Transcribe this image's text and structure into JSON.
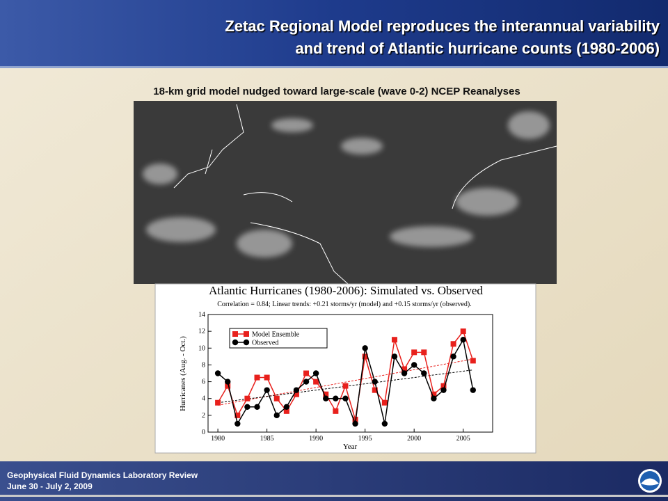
{
  "header": {
    "title_lines": [
      "Zetac Regional Model reproduces the interannual variability",
      "and trend of Atlantic hurricane counts (1980-2006)"
    ]
  },
  "image_caption": "18-km grid model nudged toward large-scale (wave 0-2) NCEP Reanalyses",
  "chart_data": {
    "type": "line",
    "title": "Atlantic Hurricanes (1980-2006): Simulated vs. Observed",
    "subtitle": "Correlation = 0.84; Linear trends: +0.21 storms/yr (model) and +0.15 storms/yr (observed).",
    "x_label": "Year",
    "y_label": "Hurricanes (Aug. - Oct.)",
    "x": [
      1980,
      1981,
      1982,
      1983,
      1984,
      1985,
      1986,
      1987,
      1988,
      1989,
      1990,
      1991,
      1992,
      1993,
      1994,
      1995,
      1996,
      1997,
      1998,
      1999,
      2000,
      2001,
      2002,
      2003,
      2004,
      2005,
      2006
    ],
    "series": [
      {
        "name": "Model Ensemble",
        "color": "#e8201c",
        "marker": "square",
        "values": [
          3.5,
          5.5,
          2,
          4,
          6.5,
          6.5,
          4,
          2.5,
          4.5,
          7,
          6,
          4.5,
          2.5,
          5.5,
          1.5,
          9,
          5,
          3.5,
          11,
          7.5,
          9.5,
          9.5,
          4.5,
          5.5,
          10.5,
          12,
          8.5
        ]
      },
      {
        "name": "Observed",
        "color": "#000000",
        "marker": "circle",
        "values": [
          7,
          6,
          1,
          3,
          3,
          5,
          2,
          3,
          5,
          6,
          7,
          4,
          4,
          4,
          1,
          10,
          6,
          1,
          9,
          7,
          8,
          7,
          4,
          5,
          9,
          11,
          5
        ]
      }
    ],
    "trend_lines": [
      {
        "color": "#e8201c",
        "x": [
          1980,
          2006
        ],
        "values": [
          3.2,
          8.7
        ]
      },
      {
        "color": "#000000",
        "x": [
          1980,
          2006
        ],
        "values": [
          3.5,
          7.4
        ]
      }
    ],
    "xlim": [
      1979,
      2008
    ],
    "xticks": [
      1980,
      1985,
      1990,
      1995,
      2000,
      2005
    ],
    "ylim": [
      0,
      14
    ],
    "yticks": [
      0,
      2,
      4,
      6,
      8,
      10,
      12,
      14
    ],
    "legend": "upper-left"
  },
  "footer": {
    "lines": [
      "Geophysical Fluid Dynamics Laboratory Review",
      "June 30 - July 2, 2009"
    ]
  }
}
